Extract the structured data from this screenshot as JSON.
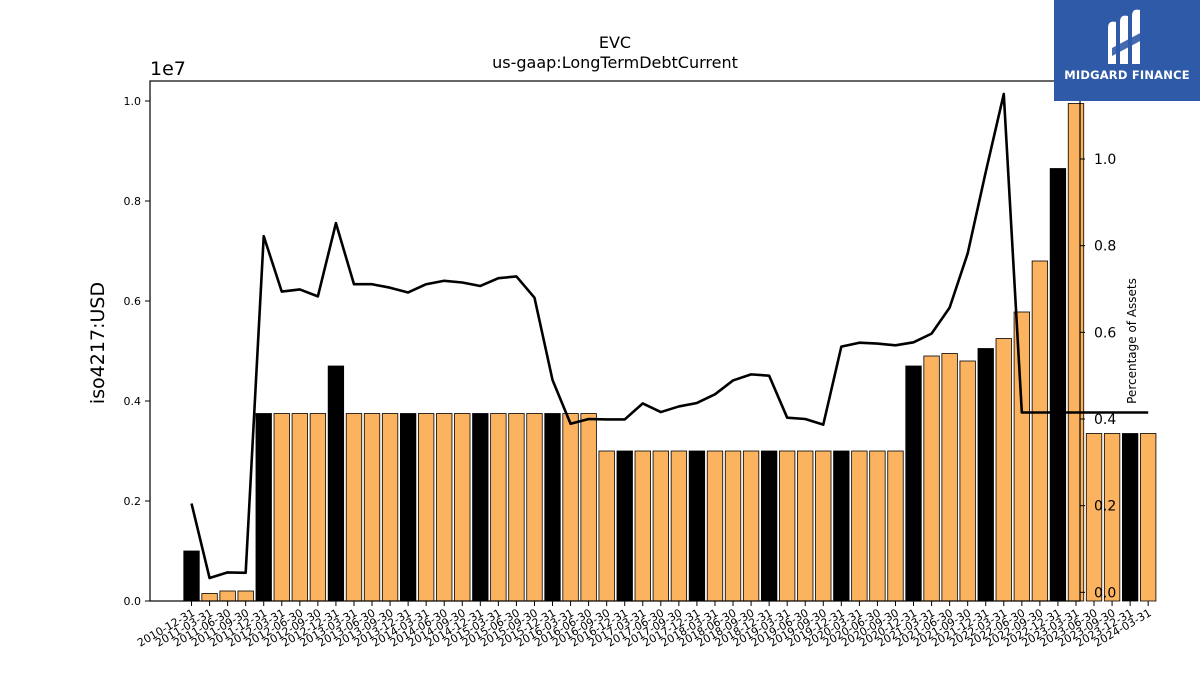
{
  "chart_data": {
    "type": "bar",
    "title": "EVC",
    "subtitle": "us-gaap:LongTermDebtCurrent",
    "ylabel": "iso4217:USD",
    "y2label": "Percentage of Assets",
    "offset_text": "1e7",
    "ylim": [
      0,
      1.04
    ],
    "y2lim": [
      -0.02,
      1.18
    ],
    "yticks": [
      "0.0",
      "0.2",
      "0.4",
      "0.6",
      "0.8",
      "1.0"
    ],
    "y2ticks": [
      "0.0",
      "0.2",
      "0.4",
      "0.6",
      "0.8",
      "1.0"
    ],
    "grid": false,
    "colors": {
      "q4_bar": "#000000",
      "other_bar": "#fbb360",
      "line": "#000000",
      "bar_edge": "#000000"
    },
    "categories": [
      "2010-12-31",
      "2011-03-31",
      "2011-06-30",
      "2011-09-30",
      "2011-12-31",
      "2012-03-31",
      "2012-06-30",
      "2012-09-30",
      "2012-12-31",
      "2013-03-31",
      "2013-06-30",
      "2013-09-30",
      "2013-12-31",
      "2014-03-31",
      "2014-06-30",
      "2014-09-30",
      "2014-12-31",
      "2015-03-31",
      "2015-06-30",
      "2015-09-30",
      "2015-12-31",
      "2016-03-31",
      "2016-06-30",
      "2016-09-30",
      "2016-12-31",
      "2017-03-31",
      "2017-06-30",
      "2017-09-30",
      "2017-12-31",
      "2018-03-31",
      "2018-06-30",
      "2018-09-30",
      "2018-12-31",
      "2019-03-31",
      "2019-06-30",
      "2019-09-30",
      "2019-12-31",
      "2020-03-31",
      "2020-06-30",
      "2020-09-30",
      "2020-12-31",
      "2021-03-31",
      "2021-06-30",
      "2021-09-30",
      "2021-12-31",
      "2022-03-31",
      "2022-06-30",
      "2022-09-30",
      "2022-12-31",
      "2023-03-31",
      "2023-06-30",
      "2023-09-30",
      "2023-12-31",
      "2024-03-31"
    ],
    "xtick_labels": [
      "2010-12-31",
      "2011-03-31",
      "2011-06-30",
      "2011-09-30",
      "2011-12-31",
      "2012-03-31",
      "2012-06-30",
      "2012-09-30",
      "2012-12-31",
      "2013-03-31",
      "2013-06-30",
      "2013-09-30",
      "2013-12-31",
      "2014-03-31",
      "2014-06-30",
      "2014-09-30",
      "2014-12-31",
      "2015-03-31",
      "2015-06-30",
      "2015-09-30",
      "2015-12-31",
      "2016-03-31",
      "2016-06-30",
      "2016-09-30",
      "2016-12-31",
      "2017-03-31",
      "2017-06-30",
      "2017-09-30",
      "2017-12-31",
      "2018-03-31",
      "2018-06-30",
      "2018-09-30",
      "2018-12-31",
      "2019-03-31",
      "2019-06-30",
      "2019-09-30",
      "2019-12-31",
      "2020-03-31",
      "2020-06-30",
      "2020-09-30",
      "2020-12-31",
      "2021-03-31",
      "2021-06-30",
      "2021-09-30",
      "2021-12-31",
      "2022-03-31",
      "2022-06-30",
      "2022-09-30",
      "2022-12-31",
      "2023-03-31",
      "2023-06-30",
      "2023-09-30",
      "2023-12-31",
      "2024-03-31"
    ],
    "series": [
      {
        "values": [
          0.1,
          0.015,
          0.02,
          0.02,
          0.375,
          0.375,
          0.375,
          0.375,
          0.47,
          0.375,
          0.375,
          0.375,
          0.375,
          0.375,
          0.375,
          0.375,
          0.375,
          0.375,
          0.375,
          0.375,
          0.375,
          0.375,
          0.375,
          0.3,
          0.3,
          0.3,
          0.3,
          0.3,
          0.3,
          0.3,
          0.3,
          0.3,
          0.3,
          0.3,
          0.3,
          0.3,
          0.3,
          0.3,
          0.3,
          0.3,
          0.47,
          0.49,
          0.495,
          0.48,
          0.505,
          0.525,
          0.578,
          0.68,
          0.865,
          0.995,
          0.335,
          0.335,
          0.335,
          0.335
        ]
      },
      {
        "values": [
          0.205,
          0.033,
          0.046,
          0.045,
          0.822,
          0.694,
          0.699,
          0.683,
          0.852,
          0.711,
          0.711,
          0.703,
          0.692,
          0.711,
          0.719,
          0.715,
          0.707,
          0.725,
          0.729,
          0.68,
          0.49,
          0.389,
          0.4,
          0.399,
          0.399,
          0.436,
          0.416,
          0.429,
          0.437,
          0.457,
          0.489,
          0.503,
          0.5,
          0.403,
          0.4,
          0.387,
          0.567,
          0.576,
          0.574,
          0.57,
          0.577,
          0.597,
          0.657,
          0.782,
          0.97,
          1.15,
          0.415,
          0.415,
          0.415,
          0.415,
          0.415,
          0.415,
          0.415,
          0.415
        ]
      }
    ]
  },
  "logo": {
    "text": "MIDGARD FINANCE"
  }
}
